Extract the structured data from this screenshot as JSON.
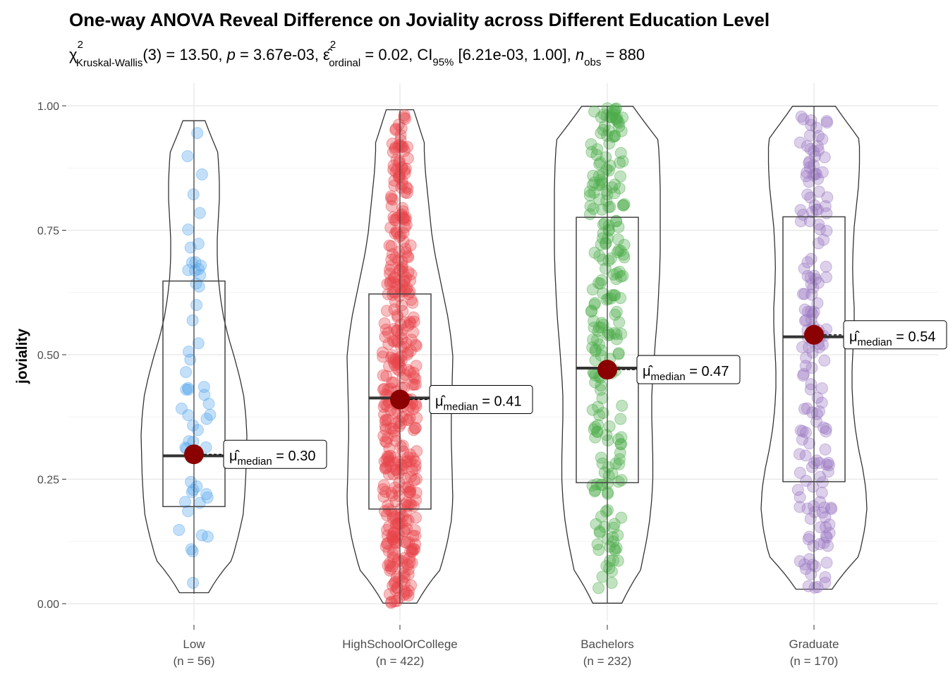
{
  "chart_data": {
    "type": "violin-box-scatter",
    "title": "One-way ANOVA Reveal Difference on Joviality across Different Education Level",
    "subtitle": {
      "test_symbol": "χ",
      "test_sup": "2",
      "test_sub": "Kruskal-Wallis",
      "df": "(3)",
      "statistic": "13.50",
      "p_symbol": "p",
      "p_value": "3.67e-03",
      "effect_symbol": "ε̂",
      "effect_sup": "2",
      "effect_sub": "ordinal",
      "effect_value": "0.02",
      "ci_text": "CI",
      "ci_sub": "95%",
      "ci_range": "[6.21e-03, 1.00]",
      "n_symbol": "n",
      "n_sub": "obs",
      "n_value": "880"
    },
    "ylabel": "joviality",
    "ylim": [
      0,
      1
    ],
    "yticks": [
      "0.00",
      "0.25",
      "0.50",
      "0.75",
      "1.00"
    ],
    "ytick_values": [
      0,
      0.25,
      0.5,
      0.75,
      1.0
    ],
    "estimate_symbol": "μ̂",
    "estimate_sub": "median",
    "groups": [
      {
        "name": "Low",
        "n_label": "(n = 56)",
        "n": 56,
        "color": "#56a6ee",
        "median": 0.3,
        "median_label": "0.30",
        "box": {
          "q1": 0.195,
          "median": 0.297,
          "q3": 0.648
        },
        "whisker": [
          0.02,
          0.97
        ],
        "violin_range": [
          0.022,
          0.97
        ],
        "density": [
          0.5,
          0.62,
          0.75,
          0.85,
          0.93,
          0.96,
          0.98,
          0.99,
          1.0,
          0.98,
          0.94,
          0.86,
          0.76,
          0.65,
          0.56,
          0.5,
          0.46,
          0.44,
          0.44,
          0.46,
          0.48,
          0.48,
          0.46,
          0.43,
          0.38
        ]
      },
      {
        "name": "HighSchoolOrCollege",
        "n_label": "(n = 422)",
        "n": 422,
        "color": "#e8464b",
        "median": 0.41,
        "median_label": "0.41",
        "box": {
          "q1": 0.19,
          "median": 0.413,
          "q3": 0.622
        },
        "whisker": [
          0.0,
          0.99
        ],
        "violin_range": [
          0.001,
          0.992
        ],
        "density": [
          0.58,
          0.68,
          0.8,
          0.9,
          0.97,
          1.0,
          0.99,
          0.98,
          0.97,
          0.97,
          0.98,
          0.99,
          1.0,
          0.96,
          0.9,
          0.82,
          0.74,
          0.66,
          0.6,
          0.56,
          0.52,
          0.48,
          0.46,
          0.46,
          0.47
        ]
      },
      {
        "name": "Bachelors",
        "n_label": "(n = 232)",
        "n": 232,
        "color": "#4cad4a",
        "median": 0.47,
        "median_label": "0.47",
        "box": {
          "q1": 0.243,
          "median": 0.473,
          "q3": 0.776
        },
        "whisker": [
          0.0,
          1.0
        ],
        "violin_range": [
          0.001,
          0.999
        ],
        "density": [
          0.5,
          0.58,
          0.66,
          0.74,
          0.8,
          0.84,
          0.86,
          0.86,
          0.85,
          0.84,
          0.84,
          0.86,
          0.89,
          0.92,
          0.95,
          0.97,
          0.99,
          1.0,
          1.0,
          1.0,
          1.0,
          0.99,
          0.97,
          0.93,
          0.88
        ]
      },
      {
        "name": "Graduate",
        "n_label": "(n = 170)",
        "n": 170,
        "color": "#9b77c2",
        "median": 0.54,
        "median_label": "0.54",
        "box": {
          "q1": 0.245,
          "median": 0.536,
          "q3": 0.777
        },
        "whisker": [
          0.03,
          1.0
        ],
        "violin_range": [
          0.029,
          0.999
        ],
        "density": [
          0.62,
          0.76,
          0.88,
          0.96,
          1.0,
          0.98,
          0.92,
          0.84,
          0.78,
          0.74,
          0.72,
          0.72,
          0.74,
          0.76,
          0.76,
          0.74,
          0.73,
          0.74,
          0.76,
          0.8,
          0.84,
          0.86,
          0.86,
          0.82,
          0.74
        ]
      }
    ],
    "median_point_color": "#8b0000",
    "grid": true,
    "legend": "none"
  }
}
